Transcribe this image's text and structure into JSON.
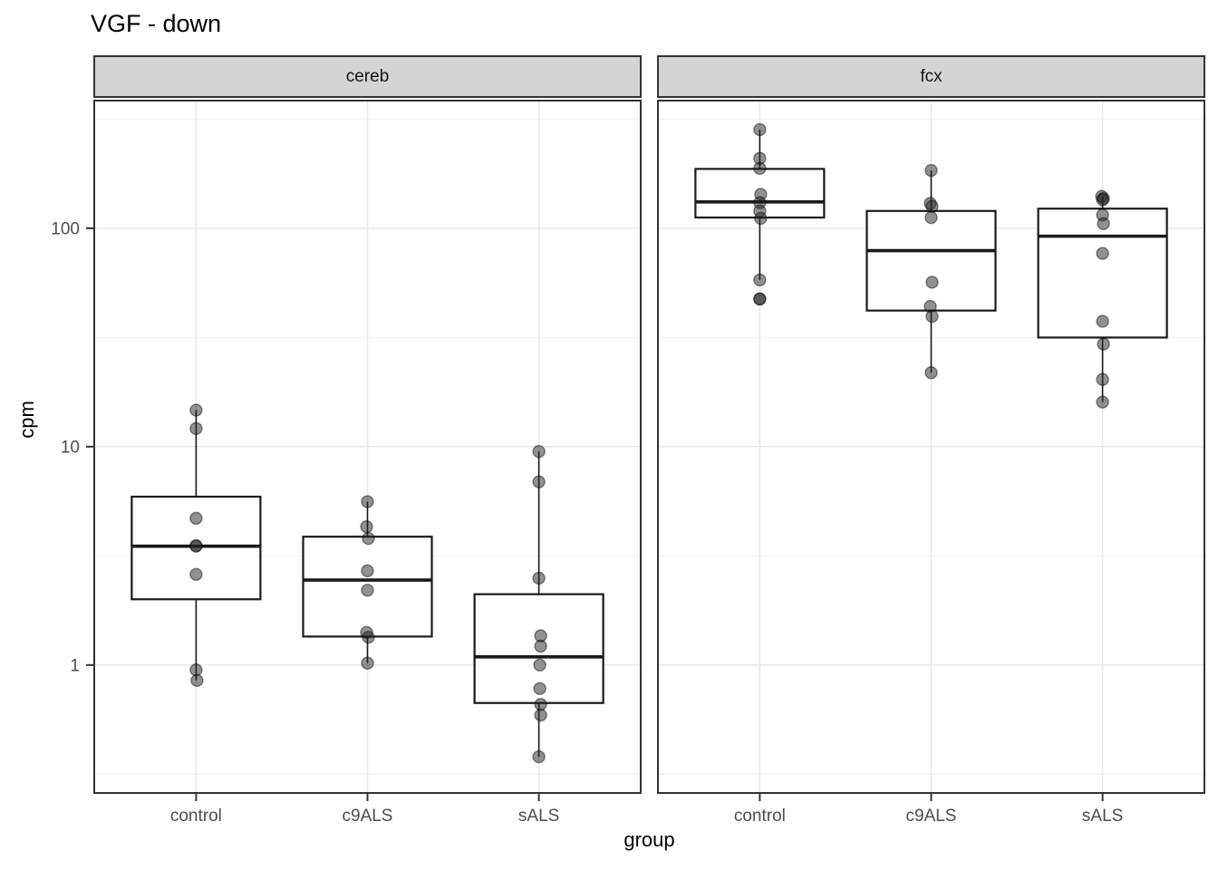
{
  "colors": {
    "strip_bg": "#d4d4d4",
    "panel_border": "#333333",
    "box_stroke": "#1a1a1a",
    "median_stroke": "#1a1a1a",
    "grid_major": "#e9e9e9",
    "grid_minor": "#f2f2f2",
    "point_fill": "rgba(35,35,35,0.5)",
    "point_stroke": "rgba(0,0,0,0.45)",
    "tick_label": "#4d4d4d",
    "tick_mark": "#333333"
  },
  "chart_data": {
    "type": "boxplot",
    "title": "VGF - down",
    "xlabel": "group",
    "ylabel": "cpm",
    "y_scale": "log10",
    "ylim": [
      0.257,
      388
    ],
    "grid": true,
    "legend": "none",
    "y_ticks": [
      {
        "label": "100",
        "value": 100
      },
      {
        "label": "10",
        "value": 10
      },
      {
        "label": "1",
        "value": 1
      }
    ],
    "y_minor": [
      316,
      31.6,
      3.16,
      0.316
    ],
    "categories": [
      "control",
      "c9ALS",
      "sALS"
    ],
    "facets": [
      {
        "label": "cereb",
        "groups": [
          {
            "name": "control",
            "box": {
              "q1": 2.0,
              "median": 3.5,
              "q3": 5.9,
              "whisker_low": 0.85,
              "whisker_high": 14.7
            },
            "points": [
              {
                "v": 14.7,
                "dx": 0
              },
              {
                "v": 12.1,
                "dx": 0
              },
              {
                "v": 4.7,
                "dx": 0
              },
              {
                "v": 3.52,
                "dx": 0
              },
              {
                "v": 3.5,
                "dx": 0
              },
              {
                "v": 2.6,
                "dx": 0
              },
              {
                "v": 0.95,
                "dx": 0
              },
              {
                "v": 0.85,
                "dx": 1
              }
            ]
          },
          {
            "name": "c9ALS",
            "box": {
              "q1": 1.35,
              "median": 2.45,
              "q3": 3.87,
              "whisker_low": 1.02,
              "whisker_high": 5.6
            },
            "points": [
              {
                "v": 5.6,
                "dx": 0
              },
              {
                "v": 4.3,
                "dx": -1
              },
              {
                "v": 3.8,
                "dx": 1
              },
              {
                "v": 2.7,
                "dx": 0
              },
              {
                "v": 2.2,
                "dx": 0
              },
              {
                "v": 1.41,
                "dx": -1
              },
              {
                "v": 1.34,
                "dx": 1
              },
              {
                "v": 1.02,
                "dx": 0
              }
            ]
          },
          {
            "name": "sALS",
            "box": {
              "q1": 0.67,
              "median": 1.09,
              "q3": 2.11,
              "whisker_low": 0.38,
              "whisker_high": 9.5
            },
            "points": [
              {
                "v": 9.5,
                "dx": 0
              },
              {
                "v": 6.9,
                "dx": 0
              },
              {
                "v": 2.5,
                "dx": 0
              },
              {
                "v": 1.36,
                "dx": 2
              },
              {
                "v": 1.22,
                "dx": 2
              },
              {
                "v": 1.0,
                "dx": 1
              },
              {
                "v": 0.78,
                "dx": 1
              },
              {
                "v": 0.66,
                "dx": 2
              },
              {
                "v": 0.59,
                "dx": 2
              },
              {
                "v": 0.38,
                "dx": 0
              }
            ]
          }
        ]
      },
      {
        "label": "fcx",
        "groups": [
          {
            "name": "control",
            "box": {
              "q1": 112,
              "median": 132,
              "q3": 187,
              "whisker_low": 58,
              "whisker_high": 283
            },
            "points": [
              {
                "v": 283,
                "dx": 0
              },
              {
                "v": 209,
                "dx": 0
              },
              {
                "v": 188,
                "dx": 0
              },
              {
                "v": 143,
                "dx": 1
              },
              {
                "v": 131,
                "dx": 0
              },
              {
                "v": 120,
                "dx": 0
              },
              {
                "v": 111,
                "dx": 1
              },
              {
                "v": 58,
                "dx": 0
              },
              {
                "v": 47.5,
                "dx": 0
              },
              {
                "v": 47.4,
                "dx": 0
              }
            ]
          },
          {
            "name": "c9ALS",
            "box": {
              "q1": 42,
              "median": 79,
              "q3": 120,
              "whisker_low": 21.8,
              "whisker_high": 184
            },
            "points": [
              {
                "v": 184,
                "dx": 0
              },
              {
                "v": 130,
                "dx": -1
              },
              {
                "v": 126,
                "dx": 1
              },
              {
                "v": 112,
                "dx": 0
              },
              {
                "v": 56.6,
                "dx": 1
              },
              {
                "v": 43.9,
                "dx": -1
              },
              {
                "v": 39.5,
                "dx": 1
              },
              {
                "v": 21.8,
                "dx": 0
              }
            ]
          },
          {
            "name": "sALS",
            "box": {
              "q1": 31.6,
              "median": 92,
              "q3": 123,
              "whisker_low": 16,
              "whisker_high": 140
            },
            "points": [
              {
                "v": 140,
                "dx": -1
              },
              {
                "v": 137,
                "dx": 1
              },
              {
                "v": 135,
                "dx": 0
              },
              {
                "v": 115,
                "dx": 0
              },
              {
                "v": 105,
                "dx": 1
              },
              {
                "v": 76.7,
                "dx": 0
              },
              {
                "v": 37.5,
                "dx": 0
              },
              {
                "v": 29.5,
                "dx": 1
              },
              {
                "v": 20.3,
                "dx": 0
              },
              {
                "v": 16,
                "dx": 0
              }
            ]
          }
        ]
      }
    ]
  }
}
